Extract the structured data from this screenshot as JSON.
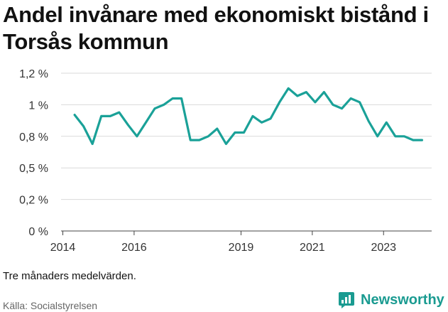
{
  "title": "Andel invånare med ekonomiskt bistånd i Torsås kommun",
  "note": "Tre månaders medelvärden.",
  "source": "Källa: Socialstyrelsen",
  "brand": {
    "name": "Newsworthy",
    "icon": "newsworthy-logo-icon",
    "color": "#1a9b91"
  },
  "chart_data": {
    "type": "line",
    "title": "Andel invånare med ekonomiskt bistånd i Torsås kommun",
    "xlabel": "",
    "ylabel": "",
    "x_ticks": [
      {
        "value": 2014,
        "label": "2014"
      },
      {
        "value": 2016,
        "label": "2016"
      },
      {
        "value": 2019,
        "label": "2019"
      },
      {
        "value": 2021,
        "label": "2021"
      },
      {
        "value": 2023,
        "label": "2023"
      }
    ],
    "y_ticks": [
      {
        "value": 0,
        "label": "0 %"
      },
      {
        "value": 0.25,
        "label": "0,2 %"
      },
      {
        "value": 0.5,
        "label": "0,5 %"
      },
      {
        "value": 0.75,
        "label": "0,8 %"
      },
      {
        "value": 1.0,
        "label": "1 %"
      },
      {
        "value": 1.25,
        "label": "1,2 %"
      }
    ],
    "xlim": [
      2013.95,
      2024.35
    ],
    "ylim": [
      0,
      1.25
    ],
    "grid": true,
    "line_color": "#1aa198",
    "series": [
      {
        "name": "",
        "x": [
          2014.33,
          2014.58,
          2014.83,
          2015.08,
          2015.33,
          2015.58,
          2015.83,
          2016.08,
          2016.33,
          2016.58,
          2016.83,
          2017.08,
          2017.33,
          2017.58,
          2017.83,
          2018.08,
          2018.33,
          2018.58,
          2018.83,
          2019.08,
          2019.33,
          2019.58,
          2019.83,
          2020.08,
          2020.33,
          2020.58,
          2020.83,
          2021.08,
          2021.33,
          2021.58,
          2021.83,
          2022.08,
          2022.33,
          2022.58,
          2022.83,
          2023.08,
          2023.33,
          2023.58,
          2023.83,
          2024.08
        ],
        "values": [
          0.92,
          0.83,
          0.69,
          0.91,
          0.91,
          0.94,
          0.84,
          0.75,
          0.86,
          0.97,
          1.0,
          1.05,
          1.05,
          0.72,
          0.72,
          0.75,
          0.81,
          0.69,
          0.78,
          0.78,
          0.91,
          0.86,
          0.89,
          1.02,
          1.13,
          1.07,
          1.1,
          1.02,
          1.1,
          1.0,
          0.97,
          1.05,
          1.02,
          0.87,
          0.75,
          0.86,
          0.75,
          0.75,
          0.72,
          0.72
        ]
      }
    ]
  }
}
